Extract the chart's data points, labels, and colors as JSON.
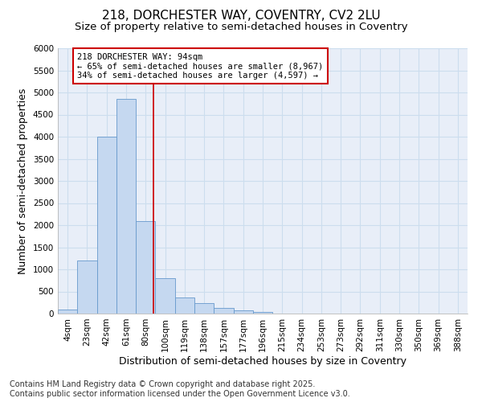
{
  "title_line1": "218, DORCHESTER WAY, COVENTRY, CV2 2LU",
  "title_line2": "Size of property relative to semi-detached houses in Coventry",
  "xlabel": "Distribution of semi-detached houses by size in Coventry",
  "ylabel": "Number of semi-detached properties",
  "categories": [
    "4sqm",
    "23sqm",
    "42sqm",
    "61sqm",
    "80sqm",
    "100sqm",
    "119sqm",
    "138sqm",
    "157sqm",
    "177sqm",
    "196sqm",
    "215sqm",
    "234sqm",
    "253sqm",
    "273sqm",
    "292sqm",
    "311sqm",
    "330sqm",
    "350sqm",
    "369sqm",
    "388sqm"
  ],
  "bar_values": [
    100,
    1200,
    4000,
    4850,
    2100,
    800,
    370,
    230,
    130,
    80,
    30,
    5,
    3,
    2,
    1,
    0,
    0,
    0,
    0,
    0,
    0
  ],
  "bar_color": "#C5D8F0",
  "bar_edge_color": "#6699CC",
  "grid_color": "#CCDDEE",
  "background_color": "#FFFFFF",
  "plot_bg_color": "#E8EEF8",
  "red_line_color": "#CC0000",
  "red_line_bin_index": 4,
  "annotation_line1": "218 DORCHESTER WAY: 94sqm",
  "annotation_line2": "← 65% of semi-detached houses are smaller (8,967)",
  "annotation_line3": "34% of semi-detached houses are larger (4,597) →",
  "annotation_box_color": "#FFFFFF",
  "annotation_border_color": "#CC0000",
  "ylim": [
    0,
    6000
  ],
  "yticks": [
    0,
    500,
    1000,
    1500,
    2000,
    2500,
    3000,
    3500,
    4000,
    4500,
    5000,
    5500,
    6000
  ],
  "footer_line1": "Contains HM Land Registry data © Crown copyright and database right 2025.",
  "footer_line2": "Contains public sector information licensed under the Open Government Licence v3.0.",
  "title_fontsize": 11,
  "subtitle_fontsize": 9.5,
  "axis_label_fontsize": 9,
  "tick_fontsize": 7.5,
  "annotation_fontsize": 7.5,
  "footer_fontsize": 7
}
